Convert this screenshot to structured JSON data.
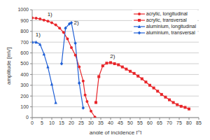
{
  "chart_data": {
    "type": "line",
    "xlabel": "angle of incidence [°]",
    "ylabel": "amplitude [mV]",
    "xlim": [
      0,
      85
    ],
    "xticks": [
      0,
      5,
      10,
      15,
      20,
      25,
      30,
      35,
      40,
      45,
      50,
      55,
      60,
      65,
      70,
      75,
      80,
      85
    ],
    "ylim": [
      0,
      1000
    ],
    "yticks": [
      0,
      100,
      200,
      300,
      400,
      500,
      600,
      700,
      800,
      900,
      1000
    ],
    "grid": true,
    "legend": "upper right",
    "series": [
      {
        "name": "acrylic, longitudinal",
        "color": "#e8262a",
        "marker": "circle",
        "line_style": "solid",
        "x": [
          0,
          2,
          4,
          6,
          8,
          10,
          12,
          14,
          16,
          18,
          20,
          22,
          24,
          26,
          27,
          28,
          30,
          32
        ],
        "values": [
          925,
          922,
          915,
          905,
          895,
          880,
          860,
          830,
          790,
          730,
          650,
          580,
          470,
          340,
          210,
          150,
          60,
          5
        ]
      },
      {
        "name": "acrylic, transversal",
        "color": "#e8262a",
        "marker": "square",
        "line_style": "solid",
        "x": [
          32.5,
          34,
          36,
          38,
          40,
          42,
          44,
          46,
          48,
          50,
          52,
          54,
          56,
          58,
          60,
          62,
          64,
          66,
          68,
          70,
          72,
          74,
          76,
          78,
          80
        ],
        "values": [
          140,
          380,
          480,
          505,
          510,
          500,
          490,
          470,
          450,
          430,
          410,
          385,
          360,
          330,
          300,
          275,
          245,
          215,
          190,
          165,
          140,
          120,
          105,
          95,
          80
        ]
      },
      {
        "name": "aluminium, longitudinal",
        "color": "#1f5fd6",
        "marker": "triangle",
        "line_style": "solid",
        "x": [
          0,
          2,
          4,
          6,
          8,
          10,
          12
        ],
        "values": [
          700,
          700,
          680,
          590,
          470,
          310,
          140
        ]
      },
      {
        "name": "aluminium, transversal",
        "color": "#1f5fd6",
        "marker": "diamond",
        "line_style": "solid",
        "x": [
          15,
          17,
          19,
          20,
          22,
          24,
          26
        ],
        "values": [
          500,
          830,
          870,
          880,
          690,
          320,
          90
        ]
      }
    ],
    "annotations": [
      {
        "text": "1)",
        "x": 9,
        "y": 960
      },
      {
        "text": "1)",
        "x": 3,
        "y": 770
      },
      {
        "text": "2)",
        "x": 22.5,
        "y": 880
      },
      {
        "text": "2)",
        "x": 41,
        "y": 570
      }
    ]
  }
}
